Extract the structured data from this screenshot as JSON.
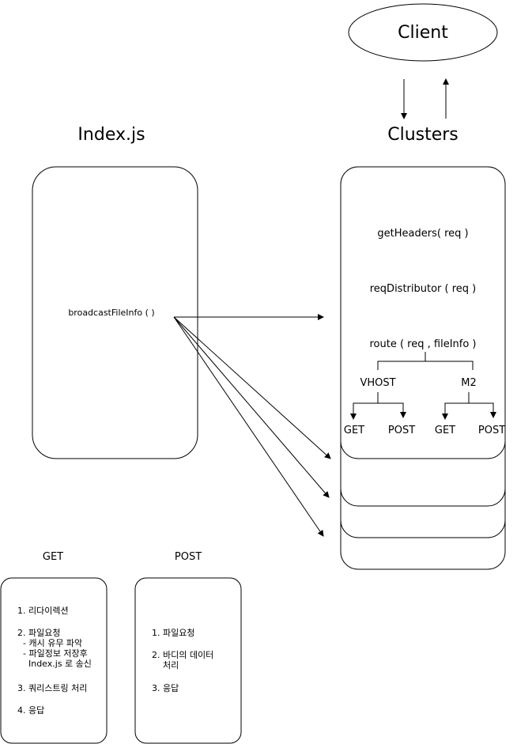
{
  "colors": {
    "stroke": "#000000",
    "fill": "#ffffff",
    "text": "#000000"
  },
  "client": {
    "label": "Client"
  },
  "index": {
    "title": "Index.js",
    "function": "broadcastFileInfo ( )"
  },
  "clusters": {
    "title": "Clusters",
    "get_headers": "getHeaders( req )",
    "req_distributor": "reqDistributor ( req )",
    "route": "route ( req , fileInfo )",
    "vhost": {
      "label": "VHOST",
      "get": "GET",
      "post": "POST"
    },
    "m2": {
      "label": "M2",
      "get": "GET",
      "post": "POST"
    }
  },
  "get_note": {
    "title": "GET",
    "items": [
      "1. 리다이렉션",
      "2. 파일요청\n  - 캐시 유무 파악\n  - 파일정보 저장후\n    Index.js 로 송신",
      "3. 쿼리스트링 처리",
      "4. 응답"
    ]
  },
  "post_note": {
    "title": "POST",
    "items": [
      "1. 파일요청",
      "2. 바디의 데이터\n    처리",
      "3. 응답"
    ]
  }
}
